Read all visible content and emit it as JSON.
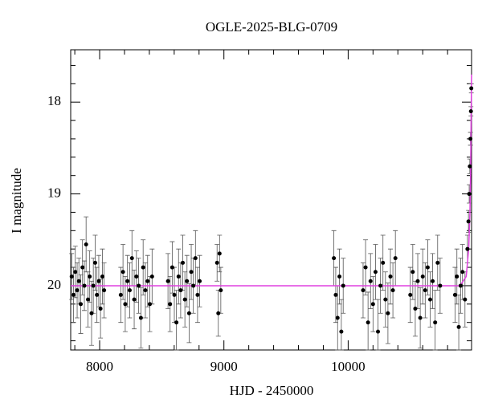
{
  "chart_data": {
    "type": "scatter",
    "title": "OGLE-2025-BLG-0709",
    "xlabel": "HJD - 2450000",
    "ylabel": "I magnitude",
    "xlim": [
      7767,
      10993
    ],
    "ylim": [
      20.7,
      17.43
    ],
    "xticks": [
      8000,
      9000,
      10000
    ],
    "yticks": [
      18,
      19,
      20
    ],
    "xminor": [
      7800,
      8200,
      8400,
      8600,
      8800,
      9200,
      9400,
      9600,
      9800,
      10200,
      10400,
      10600,
      10800
    ],
    "yminor": [
      17.6,
      17.8,
      18.2,
      18.4,
      18.6,
      18.8,
      19.2,
      19.4,
      19.6,
      19.8,
      20.2,
      20.4,
      20.6
    ],
    "color": "#000000",
    "x": [
      7775,
      7790,
      7804,
      7819,
      7833,
      7848,
      7862,
      7877,
      7891,
      7906,
      7920,
      7935,
      7949,
      7964,
      7978,
      7993,
      8007,
      8022,
      8036,
      8170,
      8188,
      8206,
      8224,
      8242,
      8260,
      8278,
      8296,
      8314,
      8332,
      8350,
      8368,
      8386,
      8404,
      8422,
      8550,
      8567,
      8584,
      8601,
      8618,
      8635,
      8652,
      8669,
      8686,
      8703,
      8720,
      8737,
      8754,
      8771,
      8788,
      8805,
      8945,
      8955,
      8965,
      8975,
      9885,
      9900,
      9915,
      9930,
      9945,
      9960,
      10120,
      10140,
      10160,
      10180,
      10200,
      10220,
      10240,
      10260,
      10280,
      10300,
      10320,
      10340,
      10360,
      10380,
      10500,
      10520,
      10540,
      10560,
      10580,
      10600,
      10620,
      10640,
      10660,
      10680,
      10700,
      10720,
      10740,
      10860,
      10875,
      10890,
      10905,
      10920,
      10940,
      10960,
      10968,
      10974,
      10979,
      10984,
      10988,
      10991
    ],
    "values": [
      19.9,
      20.1,
      19.85,
      20.05,
      19.95,
      20.2,
      19.8,
      20.0,
      19.55,
      20.15,
      19.9,
      20.3,
      20.0,
      19.75,
      20.1,
      19.95,
      20.25,
      19.9,
      20.05,
      20.1,
      19.85,
      20.2,
      19.95,
      20.05,
      19.7,
      20.15,
      19.9,
      20.0,
      20.35,
      19.8,
      20.05,
      19.95,
      20.2,
      19.9,
      19.95,
      20.2,
      19.8,
      20.1,
      20.4,
      19.9,
      20.05,
      19.75,
      20.15,
      19.95,
      20.3,
      19.85,
      20.0,
      19.7,
      20.1,
      19.95,
      19.75,
      20.3,
      19.65,
      20.05,
      19.7,
      20.1,
      20.35,
      19.9,
      20.5,
      20.0,
      20.05,
      19.8,
      20.4,
      19.95,
      20.2,
      19.85,
      20.5,
      20.0,
      19.75,
      20.15,
      20.3,
      19.9,
      20.05,
      19.7,
      20.1,
      19.85,
      20.25,
      19.95,
      20.35,
      19.9,
      20.05,
      19.8,
      20.15,
      19.95,
      20.4,
      19.75,
      20.0,
      20.1,
      19.9,
      20.45,
      20.0,
      19.85,
      20.15,
      19.6,
      19.3,
      19.0,
      18.7,
      18.4,
      18.1,
      17.85
    ],
    "errors": [
      0.25,
      0.3,
      0.28,
      0.3,
      0.25,
      0.32,
      0.3,
      0.27,
      0.3,
      0.3,
      0.28,
      0.35,
      0.3,
      0.3,
      0.3,
      0.28,
      0.32,
      0.3,
      0.3,
      0.3,
      0.3,
      0.3,
      0.28,
      0.3,
      0.3,
      0.32,
      0.28,
      0.3,
      0.33,
      0.3,
      0.3,
      0.28,
      0.3,
      0.3,
      0.3,
      0.3,
      0.28,
      0.3,
      0.35,
      0.3,
      0.3,
      0.3,
      0.3,
      0.28,
      0.32,
      0.3,
      0.3,
      0.3,
      0.3,
      0.28,
      0.2,
      0.25,
      0.2,
      0.25,
      0.3,
      0.3,
      0.35,
      0.3,
      0.35,
      0.3,
      0.3,
      0.3,
      0.33,
      0.3,
      0.3,
      0.3,
      0.35,
      0.3,
      0.3,
      0.3,
      0.33,
      0.3,
      0.3,
      0.3,
      0.3,
      0.3,
      0.3,
      0.3,
      0.33,
      0.3,
      0.3,
      0.3,
      0.3,
      0.3,
      0.35,
      0.3,
      0.3,
      0.3,
      0.3,
      0.35,
      0.3,
      0.3,
      0.3,
      0.15,
      0.12,
      0.1,
      0.08,
      0.07,
      0.05,
      0.05
    ],
    "model": {
      "color": "#e040e0",
      "x": [
        7767,
        10900,
        10950,
        10970,
        10980,
        10985,
        10990,
        10993
      ],
      "values": [
        20.0,
        20.0,
        19.9,
        19.6,
        19.2,
        18.8,
        18.1,
        17.7
      ]
    }
  }
}
